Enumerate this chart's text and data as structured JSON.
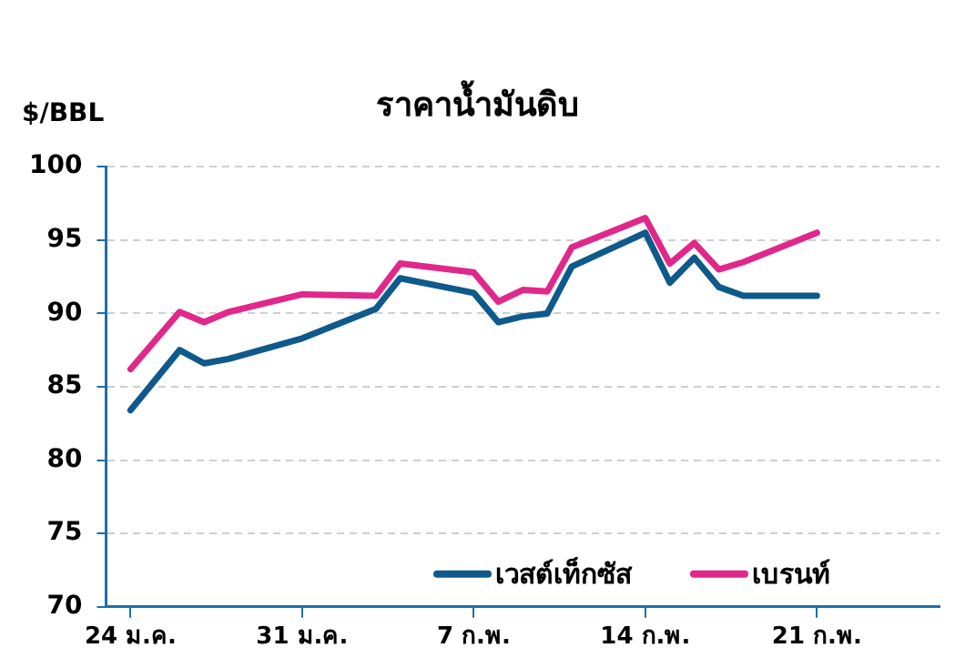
{
  "chart_data": {
    "type": "line",
    "title": "ราคาน้ำมันดิบ",
    "ylabel": "$/BBL",
    "x": [
      "--01-24",
      "--01-26",
      "--01-27",
      "--01-28",
      "--01-31",
      "--02-03",
      "--02-04",
      "--02-07",
      "--02-08",
      "--02-09",
      "--02-10",
      "--02-11",
      "--02-14",
      "--02-15",
      "--02-16",
      "--02-17",
      "--02-18",
      "--02-21"
    ],
    "series": [
      {
        "name": "เวสต์เท็กซัส",
        "color": "#0e5a8a",
        "values": [
          83.4,
          87.5,
          86.6,
          86.9,
          88.3,
          90.3,
          92.4,
          91.4,
          89.4,
          89.8,
          90.0,
          93.2,
          95.5,
          92.1,
          93.8,
          91.8,
          91.2,
          91.2
        ]
      },
      {
        "name": "เบรนท์",
        "color": "#e0288a",
        "values": [
          86.2,
          90.1,
          89.4,
          90.1,
          91.3,
          91.2,
          93.4,
          92.8,
          90.8,
          91.6,
          91.5,
          94.5,
          96.5,
          93.4,
          94.8,
          93.0,
          93.5,
          95.5
        ]
      }
    ],
    "xlim": [
      "--01-23",
      "--02-26"
    ],
    "xticks": [
      {
        "value": "--01-24",
        "label": "24 ม.ค."
      },
      {
        "value": "--01-31",
        "label": "31 ม.ค."
      },
      {
        "value": "--02-07",
        "label": "7 ก.พ."
      },
      {
        "value": "--02-14",
        "label": "14 ก.พ."
      },
      {
        "value": "--02-21",
        "label": "21 ก.พ."
      }
    ],
    "ylim": [
      70,
      100
    ],
    "yticks": [
      70,
      75,
      80,
      85,
      90,
      95,
      100
    ],
    "grid": "y",
    "legend": "bottom right",
    "marker": "none",
    "line_style": "solid"
  }
}
